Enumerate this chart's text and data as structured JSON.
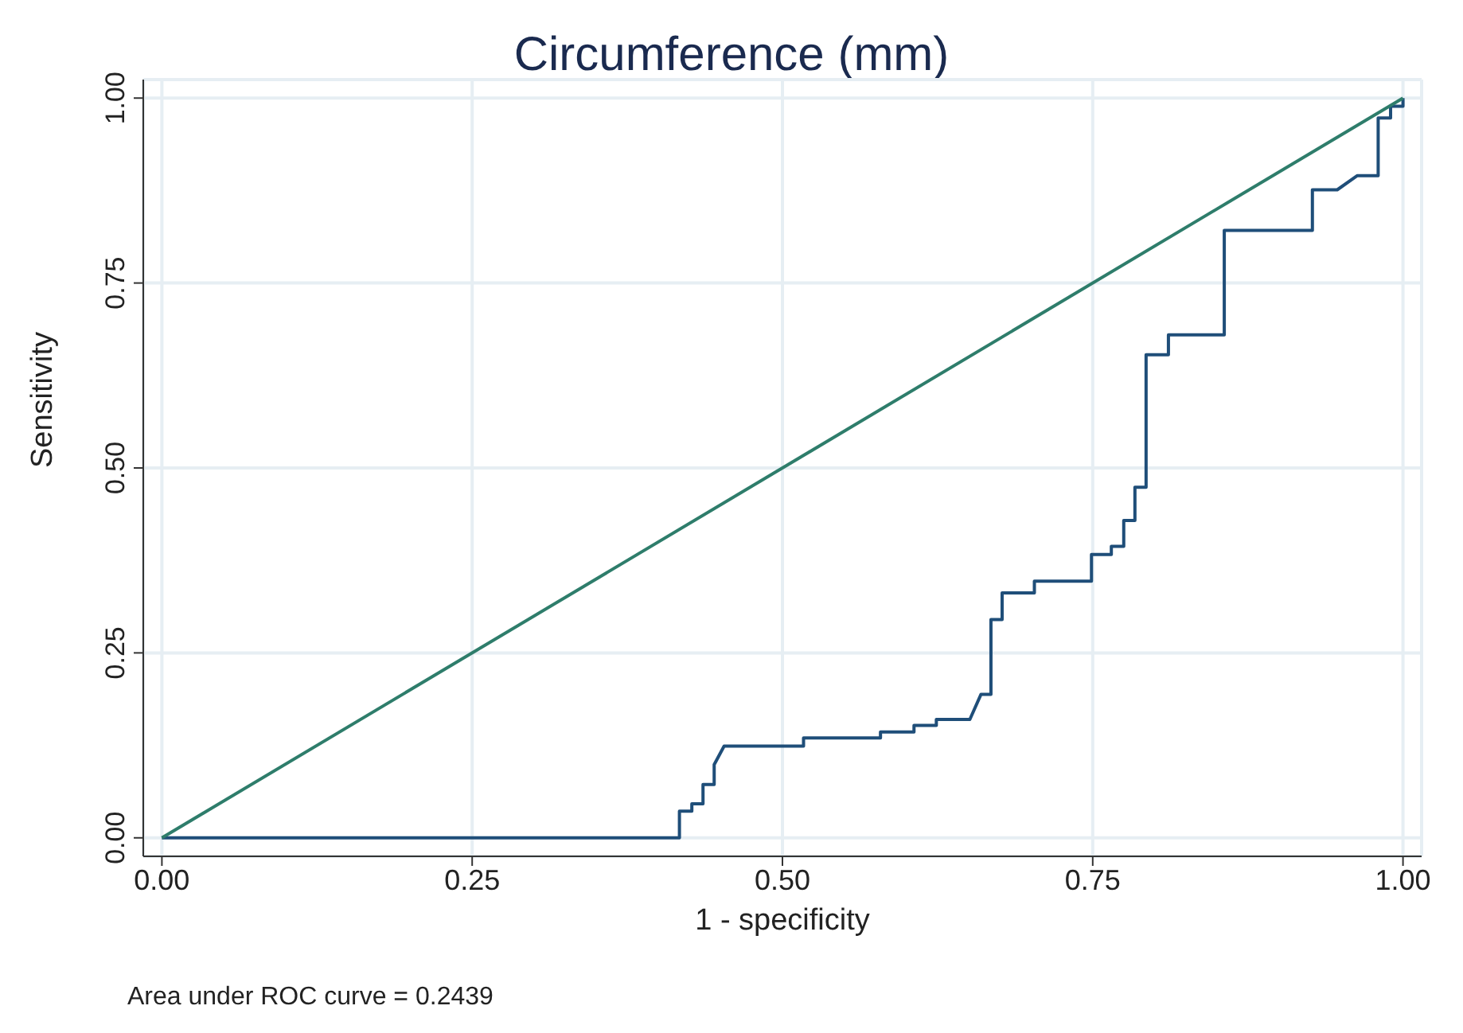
{
  "chart_data": {
    "type": "line",
    "title": "Circumference (mm)",
    "xlabel": "1 - specificity",
    "ylabel": "Sensitivity",
    "annotations": [
      "Area under ROC curve = 0.2439"
    ],
    "series": [
      {
        "color": "#1f4e79",
        "x": [
          0,
          0.417,
          0.417,
          0.427,
          0.427,
          0.436,
          0.436,
          0.445,
          0.445,
          0.453,
          0.517,
          0.517,
          0.579,
          0.579,
          0.606,
          0.606,
          0.624,
          0.624,
          0.651,
          0.66,
          0.668,
          0.668,
          0.677,
          0.677,
          0.703,
          0.703,
          0.749,
          0.749,
          0.765,
          0.765,
          0.775,
          0.775,
          0.784,
          0.784,
          0.793,
          0.793,
          0.811,
          0.811,
          0.856,
          0.856,
          0.927,
          0.927,
          0.947,
          0.963,
          0.98,
          0.98,
          0.99,
          0.99,
          1,
          1
        ],
        "values": [
          0,
          0,
          0.036,
          0.036,
          0.046,
          0.046,
          0.072,
          0.072,
          0.099,
          0.124,
          0.124,
          0.135,
          0.135,
          0.143,
          0.143,
          0.152,
          0.152,
          0.16,
          0.16,
          0.194,
          0.194,
          0.295,
          0.295,
          0.331,
          0.331,
          0.347,
          0.347,
          0.383,
          0.383,
          0.394,
          0.394,
          0.429,
          0.429,
          0.474,
          0.474,
          0.653,
          0.653,
          0.68,
          0.68,
          0.821,
          0.821,
          0.876,
          0.876,
          0.895,
          0.895,
          0.973,
          0.973,
          0.989,
          0.989,
          1
        ]
      },
      {
        "color": "#2e7d6b",
        "x": [
          0,
          1
        ],
        "values": [
          0,
          1
        ]
      }
    ],
    "xlim": [
      -0.015,
      1.015
    ],
    "ylim": [
      -0.025,
      1.025
    ],
    "xticks": [
      {
        "value": 0,
        "label": "0.00"
      },
      {
        "value": 0.25,
        "label": "0.25"
      },
      {
        "value": 0.5,
        "label": "0.50"
      },
      {
        "value": 0.75,
        "label": "0.75"
      },
      {
        "value": 1,
        "label": "1.00"
      }
    ],
    "yticks": [
      {
        "value": 0,
        "label": "0.00"
      },
      {
        "value": 0.25,
        "label": "0.25"
      },
      {
        "value": 0.5,
        "label": "0.50"
      },
      {
        "value": 0.75,
        "label": "0.75"
      },
      {
        "value": 1,
        "label": "1.00"
      }
    ],
    "grid": true,
    "marker": "none",
    "line_style": "solid"
  }
}
